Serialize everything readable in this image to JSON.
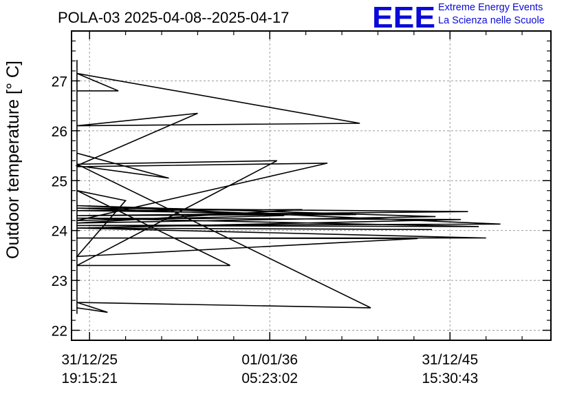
{
  "header": {
    "title": "POLA-03 2025-04-08--2025-04-17",
    "logo_text": "EEE",
    "brand_line1": "Extreme Energy Events",
    "brand_line2": "La Scienza nelle Scuole",
    "brand_color": "#0a0ad8"
  },
  "chart_data": {
    "type": "line",
    "title": "POLA-03 2025-04-08--2025-04-17",
    "ylabel": "Outdoor temperature [° C]",
    "xlabel": "",
    "ylim": [
      21.8,
      28.0
    ],
    "xlim": [
      -5.0,
      128.0
    ],
    "yticks": [
      22,
      23,
      24,
      25,
      26,
      27
    ],
    "yminor_step": 0.2,
    "xticks": [
      {
        "value": 0,
        "line1": "31/12/25",
        "line2": "19:15:21"
      },
      {
        "value": 50,
        "line1": "01/01/36",
        "line2": "05:23:02"
      },
      {
        "value": 100,
        "line1": "31/12/45",
        "line2": "15:30:43"
      }
    ],
    "xminor_step": 10,
    "grid": true,
    "series_color": "#000000",
    "series": [
      {
        "x": [
          -3.5,
          -3.5,
          -3.5,
          -3.5,
          8,
          -3.5,
          75,
          -3.5,
          30,
          -3.5,
          22,
          -3.5,
          -3.5,
          -3.5,
          66,
          -3.5,
          54,
          -3.5,
          105,
          -3.5,
          74,
          -3.5,
          59,
          -3.5,
          96,
          -3.5,
          114,
          -3.5,
          108,
          -3.5,
          103,
          -3.5,
          95,
          -3.5,
          110,
          -3.5,
          91,
          -3.5,
          10,
          -3.5,
          39,
          -3.5,
          52,
          -3.5,
          78,
          -3.5,
          5,
          -3.5,
          -3.5
        ],
        "y": [
          22.33,
          27.42,
          26.8,
          26.8,
          26.8,
          27.15,
          26.15,
          26.1,
          26.35,
          25.3,
          25.05,
          25.55,
          25.38,
          25.28,
          25.35,
          24.2,
          24.3,
          24.45,
          24.38,
          24.3,
          24.32,
          24.4,
          24.42,
          24.15,
          24.28,
          24.5,
          24.13,
          24.1,
          24.08,
          24.25,
          24.22,
          24.05,
          24.02,
          24.05,
          23.85,
          23.85,
          23.84,
          23.48,
          24.6,
          24.8,
          23.3,
          23.3,
          25.4,
          25.33,
          22.45,
          22.56,
          22.36,
          22.45,
          22.45
        ]
      }
    ]
  }
}
